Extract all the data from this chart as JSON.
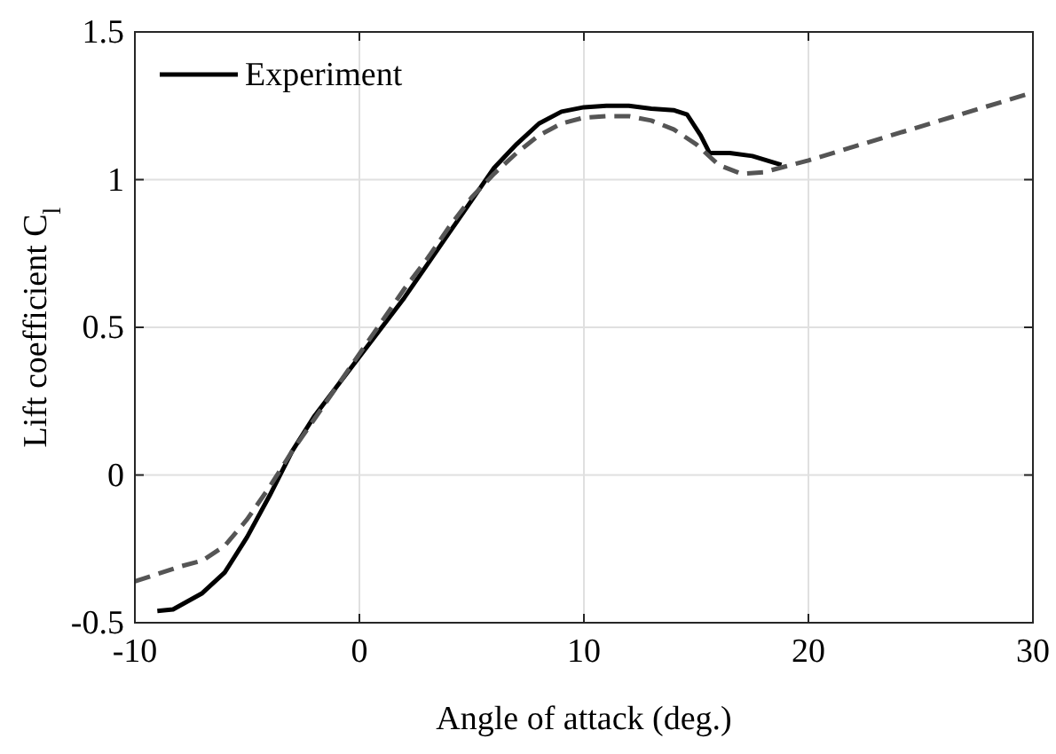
{
  "chart_data": {
    "type": "line",
    "xlabel": "Angle of attack (deg.)",
    "ylabel": "Lift coefficient C$_{l}$",
    "xlim": [
      -10,
      30
    ],
    "xticks": [
      -10,
      0,
      10,
      20,
      30
    ],
    "ylim": [
      -0.5,
      1.5
    ],
    "yticks": [
      -0.5,
      0,
      0.5,
      1,
      1.5
    ],
    "grid": true,
    "legend": "top left",
    "series": [
      {
        "name": "Experiment",
        "color": "#000000",
        "line_style": "solid",
        "x": [
          -9,
          -8.3,
          -7,
          -6,
          -5,
          -4,
          -3,
          -2,
          -1,
          0,
          1,
          2,
          3,
          4,
          5,
          6,
          7,
          8,
          9,
          10,
          11,
          12,
          13,
          14,
          14.6,
          15.2,
          15.6,
          16.5,
          17.5,
          18.8
        ],
        "values": [
          -0.46,
          -0.455,
          -0.4,
          -0.33,
          -0.21,
          -0.07,
          0.08,
          0.2,
          0.3,
          0.4,
          0.5,
          0.6,
          0.71,
          0.82,
          0.93,
          1.04,
          1.12,
          1.19,
          1.23,
          1.245,
          1.25,
          1.25,
          1.24,
          1.235,
          1.22,
          1.15,
          1.09,
          1.09,
          1.08,
          1.05
        ]
      },
      {
        "color": "#555555",
        "line_style": "dashed",
        "x": [
          -10,
          -8,
          -7,
          -6,
          -5,
          -4,
          -3,
          -2,
          -1,
          0,
          1,
          2,
          3,
          4,
          5,
          6,
          7,
          8,
          9,
          10,
          11,
          12,
          13,
          14,
          15,
          16,
          17,
          18,
          19,
          20,
          25,
          30
        ],
        "values": [
          -0.36,
          -0.31,
          -0.29,
          -0.24,
          -0.15,
          -0.04,
          0.08,
          0.19,
          0.3,
          0.41,
          0.52,
          0.63,
          0.73,
          0.84,
          0.94,
          1.02,
          1.09,
          1.15,
          1.19,
          1.21,
          1.215,
          1.215,
          1.2,
          1.17,
          1.12,
          1.05,
          1.02,
          1.025,
          1.045,
          1.065,
          1.18,
          1.295
        ]
      }
    ]
  }
}
